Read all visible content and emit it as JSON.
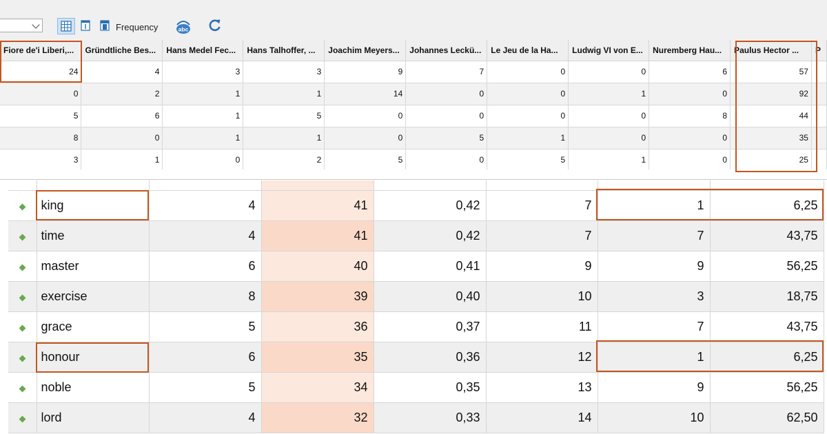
{
  "toolbar": {
    "frequency_label": "Frequency",
    "icons": [
      "table-grid-icon",
      "single-page-icon",
      "document-icon",
      "abc-icon",
      "refresh-icon"
    ],
    "accent_color": "#2a6fb0"
  },
  "top_table": {
    "headers": [
      "Fiore de'i Liberi,...",
      "Gründtliche Bes...",
      "Hans Medel Fec...",
      "Hans Talhoffer, ...",
      "Joachim Meyers...",
      "Johannes Leckü...",
      "Le Jeu de la Ha...",
      "Ludwig VI von E...",
      "Nuremberg Hau...",
      "Paulus Hector ...",
      "P"
    ],
    "rows": [
      [
        "24",
        "4",
        "3",
        "3",
        "9",
        "7",
        "0",
        "0",
        "6",
        "57"
      ],
      [
        "0",
        "2",
        "1",
        "1",
        "14",
        "0",
        "0",
        "1",
        "0",
        "92"
      ],
      [
        "5",
        "6",
        "1",
        "5",
        "0",
        "0",
        "0",
        "0",
        "8",
        "44"
      ],
      [
        "8",
        "0",
        "1",
        "1",
        "0",
        "5",
        "1",
        "0",
        "0",
        "35"
      ],
      [
        "3",
        "1",
        "0",
        "2",
        "5",
        "0",
        "5",
        "1",
        "0",
        "25"
      ]
    ]
  },
  "bottom_table": {
    "rows": [
      {
        "word": "king",
        "c1": "4",
        "c2": "41",
        "c3": "0,42",
        "c4": "7",
        "c5": "1",
        "c6": "6,25"
      },
      {
        "word": "time",
        "c1": "4",
        "c2": "41",
        "c3": "0,42",
        "c4": "7",
        "c5": "7",
        "c6": "43,75"
      },
      {
        "word": "master",
        "c1": "6",
        "c2": "40",
        "c3": "0,41",
        "c4": "9",
        "c5": "9",
        "c6": "56,25"
      },
      {
        "word": "exercise",
        "c1": "8",
        "c2": "39",
        "c3": "0,40",
        "c4": "10",
        "c5": "3",
        "c6": "18,75"
      },
      {
        "word": "grace",
        "c1": "5",
        "c2": "36",
        "c3": "0,37",
        "c4": "11",
        "c5": "7",
        "c6": "43,75"
      },
      {
        "word": "honour",
        "c1": "6",
        "c2": "35",
        "c3": "0,36",
        "c4": "12",
        "c5": "1",
        "c6": "6,25"
      },
      {
        "word": "noble",
        "c1": "5",
        "c2": "34",
        "c3": "0,35",
        "c4": "13",
        "c5": "9",
        "c6": "56,25"
      },
      {
        "word": "lord",
        "c1": "4",
        "c2": "32",
        "c3": "0,33",
        "c4": "14",
        "c5": "10",
        "c6": "62,50"
      }
    ]
  },
  "highlight_color": "#c4561f"
}
